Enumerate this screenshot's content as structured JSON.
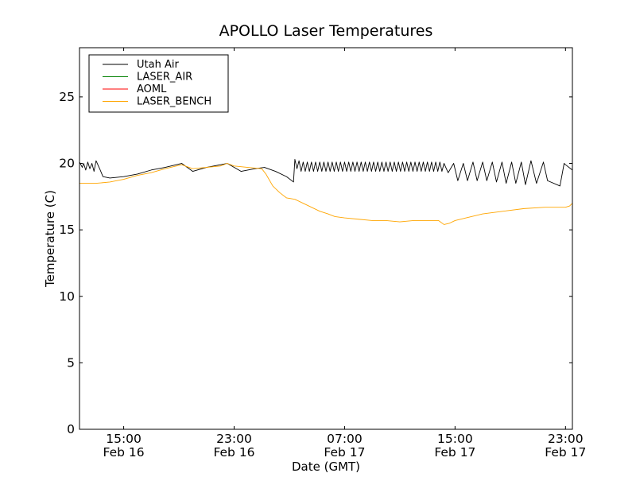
{
  "chart_data": {
    "type": "line",
    "title": "APOLLO Laser Temperatures",
    "xlabel": "Date (GMT)",
    "ylabel": "Temperature (C)",
    "xlim": [
      11.8,
      47.5
    ],
    "ylim": [
      0,
      28.7
    ],
    "y_ticks": [
      0,
      5,
      10,
      15,
      20,
      25
    ],
    "x_ticks": [
      {
        "hours": 15,
        "time": "15:00",
        "date": "Feb 16"
      },
      {
        "hours": 23,
        "time": "23:00",
        "date": "Feb 16"
      },
      {
        "hours": 31,
        "time": "07:00",
        "date": "Feb 17"
      },
      {
        "hours": 39,
        "time": "15:00",
        "date": "Feb 17"
      },
      {
        "hours": 47,
        "time": "23:00",
        "date": "Feb 17"
      }
    ],
    "legend_position": "top-left",
    "series": [
      {
        "name": "Utah Air",
        "color": "#000000",
        "points": [
          [
            11.8,
            20.1
          ],
          [
            12.0,
            19.7
          ],
          [
            12.1,
            20.0
          ],
          [
            12.25,
            19.5
          ],
          [
            12.4,
            20.1
          ],
          [
            12.55,
            19.6
          ],
          [
            12.7,
            20.0
          ],
          [
            12.85,
            19.4
          ],
          [
            13.0,
            20.2
          ],
          [
            13.3,
            19.5
          ],
          [
            13.5,
            19.0
          ],
          [
            14.0,
            18.9
          ],
          [
            15.0,
            19.0
          ],
          [
            16.0,
            19.2
          ],
          [
            17.0,
            19.5
          ],
          [
            18.0,
            19.7
          ],
          [
            19.2,
            20.0
          ],
          [
            20.0,
            19.4
          ],
          [
            21.0,
            19.7
          ],
          [
            22.5,
            20.0
          ],
          [
            23.5,
            19.4
          ],
          [
            24.5,
            19.6
          ],
          [
            25.2,
            19.7
          ],
          [
            26.0,
            19.4
          ],
          [
            26.8,
            19.0
          ],
          [
            27.3,
            18.6
          ],
          [
            27.4,
            20.3
          ],
          [
            27.55,
            19.6
          ],
          [
            27.7,
            20.2
          ],
          [
            27.85,
            19.4
          ],
          [
            28.0,
            20.1
          ],
          [
            28.15,
            19.4
          ],
          [
            28.3,
            20.1
          ],
          [
            28.45,
            19.4
          ],
          [
            28.6,
            20.1
          ],
          [
            28.75,
            19.4
          ],
          [
            28.9,
            20.1
          ],
          [
            29.05,
            19.4
          ],
          [
            29.2,
            20.1
          ],
          [
            29.35,
            19.4
          ],
          [
            29.5,
            20.1
          ],
          [
            29.65,
            19.4
          ],
          [
            29.8,
            20.1
          ],
          [
            29.95,
            19.4
          ],
          [
            30.1,
            20.1
          ],
          [
            30.25,
            19.4
          ],
          [
            30.4,
            20.1
          ],
          [
            30.55,
            19.4
          ],
          [
            30.7,
            20.1
          ],
          [
            30.85,
            19.4
          ],
          [
            31.0,
            20.1
          ],
          [
            31.15,
            19.4
          ],
          [
            31.3,
            20.1
          ],
          [
            31.45,
            19.4
          ],
          [
            31.6,
            20.1
          ],
          [
            31.75,
            19.4
          ],
          [
            31.9,
            20.1
          ],
          [
            32.05,
            19.4
          ],
          [
            32.2,
            20.1
          ],
          [
            32.35,
            19.4
          ],
          [
            32.5,
            20.1
          ],
          [
            32.65,
            19.4
          ],
          [
            32.8,
            20.1
          ],
          [
            32.95,
            19.4
          ],
          [
            33.1,
            20.1
          ],
          [
            33.25,
            19.4
          ],
          [
            33.4,
            20.1
          ],
          [
            33.55,
            19.4
          ],
          [
            33.7,
            20.1
          ],
          [
            33.85,
            19.4
          ],
          [
            34.0,
            20.1
          ],
          [
            34.15,
            19.4
          ],
          [
            34.3,
            20.1
          ],
          [
            34.45,
            19.4
          ],
          [
            34.6,
            20.1
          ],
          [
            34.75,
            19.4
          ],
          [
            34.9,
            20.1
          ],
          [
            35.05,
            19.4
          ],
          [
            35.2,
            20.1
          ],
          [
            35.35,
            19.4
          ],
          [
            35.5,
            20.1
          ],
          [
            35.65,
            19.4
          ],
          [
            35.8,
            20.1
          ],
          [
            35.95,
            19.4
          ],
          [
            36.1,
            20.1
          ],
          [
            36.25,
            19.4
          ],
          [
            36.4,
            20.1
          ],
          [
            36.55,
            19.4
          ],
          [
            36.7,
            20.1
          ],
          [
            36.85,
            19.4
          ],
          [
            37.0,
            20.1
          ],
          [
            37.15,
            19.4
          ],
          [
            37.3,
            20.1
          ],
          [
            37.45,
            19.4
          ],
          [
            37.6,
            20.1
          ],
          [
            37.75,
            19.4
          ],
          [
            37.9,
            20.1
          ],
          [
            38.05,
            19.4
          ],
          [
            38.2,
            20.0
          ],
          [
            38.5,
            19.3
          ],
          [
            38.9,
            20.0
          ],
          [
            39.2,
            18.7
          ],
          [
            39.6,
            20.0
          ],
          [
            39.9,
            18.7
          ],
          [
            40.3,
            20.1
          ],
          [
            40.6,
            18.7
          ],
          [
            41.0,
            20.1
          ],
          [
            41.3,
            18.7
          ],
          [
            41.7,
            20.1
          ],
          [
            42.0,
            18.6
          ],
          [
            42.4,
            20.1
          ],
          [
            42.7,
            18.5
          ],
          [
            43.1,
            20.1
          ],
          [
            43.4,
            18.5
          ],
          [
            43.8,
            20.1
          ],
          [
            44.1,
            18.4
          ],
          [
            44.5,
            20.2
          ],
          [
            44.9,
            18.5
          ],
          [
            45.4,
            20.1
          ],
          [
            45.7,
            18.7
          ],
          [
            46.6,
            18.3
          ],
          [
            46.9,
            20.0
          ],
          [
            47.0,
            19.9
          ],
          [
            47.5,
            19.5
          ]
        ]
      },
      {
        "name": "LASER_AIR",
        "color": "#008000",
        "points": []
      },
      {
        "name": "AOML",
        "color": "#ff0000",
        "points": []
      },
      {
        "name": "LASER_BENCH",
        "color": "#ffa500",
        "points": [
          [
            11.8,
            18.5
          ],
          [
            13.0,
            18.5
          ],
          [
            14.0,
            18.6
          ],
          [
            15.0,
            18.8
          ],
          [
            16.0,
            19.1
          ],
          [
            17.0,
            19.3
          ],
          [
            18.0,
            19.6
          ],
          [
            19.2,
            19.9
          ],
          [
            20.0,
            19.6
          ],
          [
            21.0,
            19.7
          ],
          [
            22.0,
            19.8
          ],
          [
            22.5,
            20.0
          ],
          [
            23.0,
            19.8
          ],
          [
            24.0,
            19.7
          ],
          [
            25.0,
            19.6
          ],
          [
            25.3,
            19.2
          ],
          [
            25.8,
            18.3
          ],
          [
            26.3,
            17.8
          ],
          [
            26.8,
            17.4
          ],
          [
            27.4,
            17.3
          ],
          [
            28.0,
            17.0
          ],
          [
            28.6,
            16.7
          ],
          [
            29.2,
            16.4
          ],
          [
            29.8,
            16.2
          ],
          [
            30.3,
            16.0
          ],
          [
            31.0,
            15.9
          ],
          [
            32.0,
            15.8
          ],
          [
            33.0,
            15.7
          ],
          [
            34.0,
            15.7
          ],
          [
            35.0,
            15.6
          ],
          [
            36.0,
            15.7
          ],
          [
            37.0,
            15.7
          ],
          [
            37.8,
            15.7
          ],
          [
            38.2,
            15.4
          ],
          [
            38.6,
            15.5
          ],
          [
            39.0,
            15.7
          ],
          [
            39.8,
            15.9
          ],
          [
            41.0,
            16.2
          ],
          [
            42.5,
            16.4
          ],
          [
            44.0,
            16.6
          ],
          [
            45.5,
            16.7
          ],
          [
            47.0,
            16.7
          ],
          [
            47.3,
            16.8
          ],
          [
            47.5,
            17.0
          ]
        ]
      }
    ]
  }
}
